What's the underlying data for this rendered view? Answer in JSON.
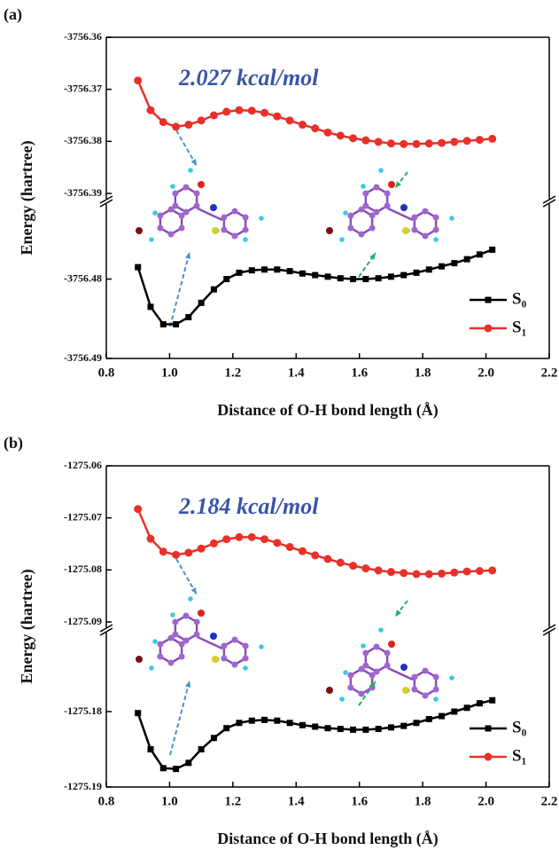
{
  "chart_data": [
    {
      "type": "line",
      "panel_label": "(a)",
      "annotation": "2.027 kcal/mol",
      "x_label": "Distance of O-H bond length (Å)",
      "y_label": "Energy (hartree)",
      "x": [
        0.9,
        0.94,
        0.98,
        1.02,
        1.06,
        1.1,
        1.14,
        1.18,
        1.22,
        1.26,
        1.3,
        1.34,
        1.38,
        1.42,
        1.46,
        1.5,
        1.54,
        1.58,
        1.62,
        1.66,
        1.7,
        1.74,
        1.78,
        1.82,
        1.86,
        1.9,
        1.94,
        1.98,
        2.02
      ],
      "series": [
        {
          "name": "S₀",
          "color": "#000000",
          "marker": "square",
          "values": [
            -3756.4785,
            -3756.4835,
            -3756.4857,
            -3756.4857,
            -3756.4848,
            -3756.483,
            -3756.4813,
            -3756.48,
            -3756.4792,
            -3756.4789,
            -3756.4788,
            -3756.4788,
            -3756.479,
            -3756.4793,
            -3756.4795,
            -3756.4797,
            -3756.4799,
            -3756.48,
            -3756.48,
            -3756.4799,
            -3756.4797,
            -3756.4795,
            -3756.4792,
            -3756.4788,
            -3756.4784,
            -3756.478,
            -3756.4775,
            -3756.4769,
            -3756.4763
          ]
        },
        {
          "name": "S₁",
          "color": "#e8302a",
          "marker": "circle",
          "axis": "y2",
          "values": [
            -3756.3683,
            -3756.374,
            -3756.3763,
            -3756.3772,
            -3756.3768,
            -3756.376,
            -3756.375,
            -3756.3743,
            -3756.374,
            -3756.3741,
            -3756.3745,
            -3756.3752,
            -3756.376,
            -3756.3768,
            -3756.3775,
            -3756.3783,
            -3756.3789,
            -3756.3794,
            -3756.3798,
            -3756.3801,
            -3756.3804,
            -3756.3805,
            -3756.3805,
            -3756.3804,
            -3756.3803,
            -3756.3801,
            -3756.3799,
            -3756.3797,
            -3756.3795
          ]
        }
      ],
      "xlim": [
        0.8,
        2.2
      ],
      "xticks": [
        0.8,
        {
          "value": 1,
          "label": "1.0"
        },
        1.2,
        1.4,
        1.6,
        1.8,
        {
          "value": 2,
          "label": "2.0"
        },
        2.2
      ],
      "ylim": [
        -3756.49,
        -3756.471
      ],
      "yticks": [
        -3756.48,
        -3756.49
      ],
      "y2lim": [
        -3756.39,
        -3756.36
      ],
      "y2ticks": [
        -3756.36,
        -3756.37,
        -3756.38,
        -3756.39
      ],
      "grid": false,
      "legend": "lower right"
    },
    {
      "type": "line",
      "panel_label": "(b)",
      "annotation": "2.184 kcal/mol",
      "x_label": "Distance of O-H bond length (Å)",
      "y_label": "Energy (hartree)",
      "x": [
        0.9,
        0.94,
        0.98,
        1.02,
        1.06,
        1.1,
        1.14,
        1.18,
        1.22,
        1.26,
        1.3,
        1.34,
        1.38,
        1.42,
        1.46,
        1.5,
        1.54,
        1.58,
        1.62,
        1.66,
        1.7,
        1.74,
        1.78,
        1.82,
        1.86,
        1.9,
        1.94,
        1.98,
        2.02
      ],
      "series": [
        {
          "name": "S₀",
          "color": "#000000",
          "marker": "square",
          "values": [
            -1275.1802,
            -1275.185,
            -1275.1875,
            -1275.1876,
            -1275.1868,
            -1275.185,
            -1275.1835,
            -1275.1822,
            -1275.1815,
            -1275.1812,
            -1275.1811,
            -1275.1812,
            -1275.1815,
            -1275.1818,
            -1275.182,
            -1275.1822,
            -1275.1823,
            -1275.1824,
            -1275.1824,
            -1275.1823,
            -1275.1821,
            -1275.1819,
            -1275.1815,
            -1275.181,
            -1275.1806,
            -1275.18,
            -1275.1795,
            -1275.1789,
            -1275.1785
          ]
        },
        {
          "name": "S₁",
          "color": "#e8302a",
          "marker": "circle",
          "axis": "y2",
          "values": [
            -1275.0683,
            -1275.074,
            -1275.0765,
            -1275.0771,
            -1275.0767,
            -1275.0759,
            -1275.0749,
            -1275.0741,
            -1275.0737,
            -1275.0737,
            -1275.0741,
            -1275.0748,
            -1275.0756,
            -1275.0764,
            -1275.0772,
            -1275.0779,
            -1275.0786,
            -1275.0792,
            -1275.0797,
            -1275.0801,
            -1275.0804,
            -1275.0806,
            -1275.0808,
            -1275.0808,
            -1275.0807,
            -1275.0805,
            -1275.0803,
            -1275.0802,
            -1275.0801
          ]
        }
      ],
      "xlim": [
        0.8,
        2.2
      ],
      "xticks": [
        0.8,
        {
          "value": 1,
          "label": "1.0"
        },
        1.2,
        1.4,
        1.6,
        1.8,
        {
          "value": 2,
          "label": "2.0"
        },
        2.2
      ],
      "ylim": [
        -1275.19,
        -1275.17
      ],
      "yticks": [
        -1275.18,
        -1275.19
      ],
      "y2lim": [
        -1275.09,
        -1275.06
      ],
      "y2ticks": [
        -1275.06,
        -1275.07,
        -1275.08,
        -1275.09
      ],
      "grid": false,
      "legend": "lower right"
    }
  ]
}
